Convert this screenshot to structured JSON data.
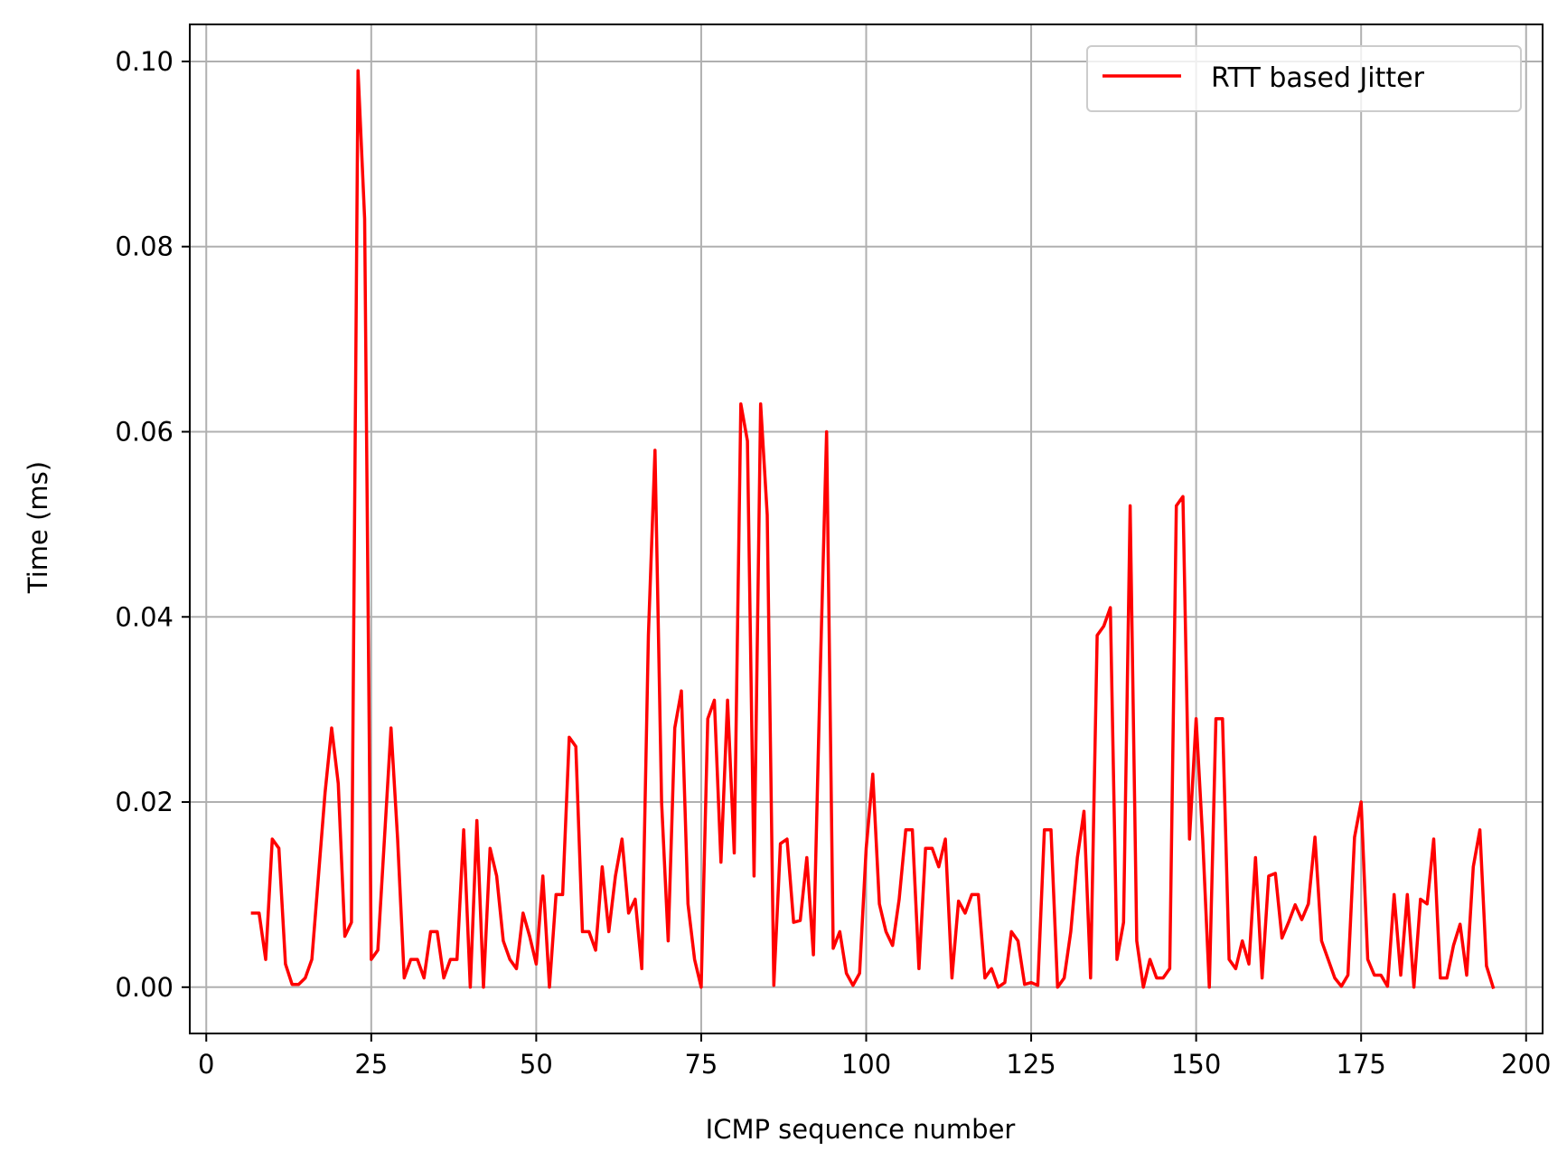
{
  "colors": {
    "series": "#ff0000",
    "grid": "#b0b0b0",
    "axes": "#000000",
    "legend_border": "#cccccc"
  },
  "chart_data": {
    "type": "line",
    "title": "",
    "xlabel": "ICMP sequence number",
    "ylabel": "Time (ms)",
    "xlim": [
      -2.5,
      202.5
    ],
    "ylim": [
      -0.005,
      0.104
    ],
    "x_ticks": [
      0,
      25,
      50,
      75,
      100,
      125,
      150,
      175,
      200
    ],
    "x_tick_labels": [
      "0",
      "25",
      "50",
      "75",
      "100",
      "125",
      "150",
      "175",
      "200"
    ],
    "y_ticks": [
      0.0,
      0.02,
      0.04,
      0.06,
      0.08,
      0.1
    ],
    "y_tick_labels": [
      "0.00",
      "0.02",
      "0.04",
      "0.06",
      "0.08",
      "0.10"
    ],
    "grid": true,
    "legend_position": "top-right",
    "series": [
      {
        "name": "RTT based Jitter",
        "color": "#ff0000",
        "x": [
          7,
          8,
          9,
          10,
          11,
          12,
          13,
          14,
          15,
          16,
          17,
          18,
          19,
          20,
          21,
          22,
          23,
          24,
          25,
          26,
          27,
          28,
          29,
          30,
          31,
          32,
          33,
          34,
          35,
          36,
          37,
          38,
          39,
          40,
          41,
          42,
          43,
          44,
          45,
          46,
          47,
          48,
          49,
          50,
          51,
          52,
          53,
          54,
          55,
          56,
          57,
          58,
          59,
          60,
          61,
          62,
          63,
          64,
          65,
          66,
          67,
          68,
          69,
          70,
          71,
          72,
          73,
          74,
          75,
          76,
          77,
          78,
          79,
          80,
          81,
          82,
          83,
          84,
          85,
          86,
          87,
          88,
          89,
          90,
          91,
          92,
          93,
          94,
          95,
          96,
          97,
          98,
          99,
          100,
          101,
          102,
          103,
          104,
          105,
          106,
          107,
          108,
          109,
          110,
          111,
          112,
          113,
          114,
          115,
          116,
          117,
          118,
          119,
          120,
          121,
          122,
          123,
          124,
          125,
          126,
          127,
          128,
          129,
          130,
          131,
          132,
          133,
          134,
          135,
          136,
          137,
          138,
          139,
          140,
          141,
          142,
          143,
          144,
          145,
          146,
          147,
          148,
          149,
          150,
          151,
          152,
          153,
          154,
          155,
          156,
          157,
          158,
          159,
          160,
          161,
          162,
          163,
          164,
          165,
          166,
          167,
          168,
          169,
          170,
          171,
          172,
          173,
          174,
          175,
          176,
          177,
          178,
          179,
          180,
          181,
          182,
          183,
          184,
          185,
          186,
          187,
          188,
          189,
          190,
          191,
          192,
          193,
          194,
          195
        ],
        "y": [
          0.008,
          0.008,
          0.003,
          0.016,
          0.015,
          0.0025,
          0.0003,
          0.0003,
          0.001,
          0.003,
          0.012,
          0.021,
          0.028,
          0.022,
          0.0055,
          0.007,
          0.099,
          0.083,
          0.003,
          0.004,
          0.016,
          0.028,
          0.016,
          0.001,
          0.003,
          0.003,
          0.001,
          0.006,
          0.006,
          0.001,
          0.003,
          0.003,
          0.017,
          0.0,
          0.018,
          0.0,
          0.015,
          0.012,
          0.005,
          0.003,
          0.002,
          0.008,
          0.0055,
          0.0025,
          0.012,
          0.0,
          0.01,
          0.01,
          0.027,
          0.026,
          0.006,
          0.006,
          0.004,
          0.013,
          0.006,
          0.012,
          0.016,
          0.008,
          0.0095,
          0.002,
          0.038,
          0.058,
          0.02,
          0.005,
          0.028,
          0.032,
          0.009,
          0.003,
          0.0,
          0.029,
          0.031,
          0.0135,
          0.031,
          0.0145,
          0.063,
          0.059,
          0.012,
          0.063,
          0.051,
          0.0002,
          0.0155,
          0.016,
          0.007,
          0.0072,
          0.014,
          0.0035,
          0.033,
          0.06,
          0.0042,
          0.006,
          0.0015,
          0.0002,
          0.0015,
          0.015,
          0.023,
          0.009,
          0.006,
          0.0045,
          0.0095,
          0.017,
          0.017,
          0.002,
          0.015,
          0.015,
          0.013,
          0.016,
          0.001,
          0.0093,
          0.008,
          0.01,
          0.01,
          0.001,
          0.002,
          0.0,
          0.0005,
          0.006,
          0.005,
          0.0003,
          0.0005,
          0.0002,
          0.017,
          0.017,
          0.0,
          0.001,
          0.006,
          0.014,
          0.019,
          0.001,
          0.038,
          0.039,
          0.041,
          0.003,
          0.007,
          0.052,
          0.005,
          0.0,
          0.003,
          0.001,
          0.001,
          0.002,
          0.052,
          0.053,
          0.016,
          0.029,
          0.016,
          0.0,
          0.029,
          0.029,
          0.003,
          0.002,
          0.005,
          0.0025,
          0.014,
          0.001,
          0.012,
          0.0123,
          0.0053,
          0.007,
          0.0089,
          0.0073,
          0.009,
          0.0162,
          0.005,
          0.003,
          0.001,
          0.0001,
          0.0013,
          0.0162,
          0.02,
          0.003,
          0.0013,
          0.0013,
          0.0001,
          0.01,
          0.0013,
          0.01,
          0.0,
          0.0095,
          0.009,
          0.016,
          0.001,
          0.001,
          0.0045,
          0.0068,
          0.0013,
          0.013,
          0.017,
          0.0023,
          0.0
        ]
      }
    ]
  }
}
